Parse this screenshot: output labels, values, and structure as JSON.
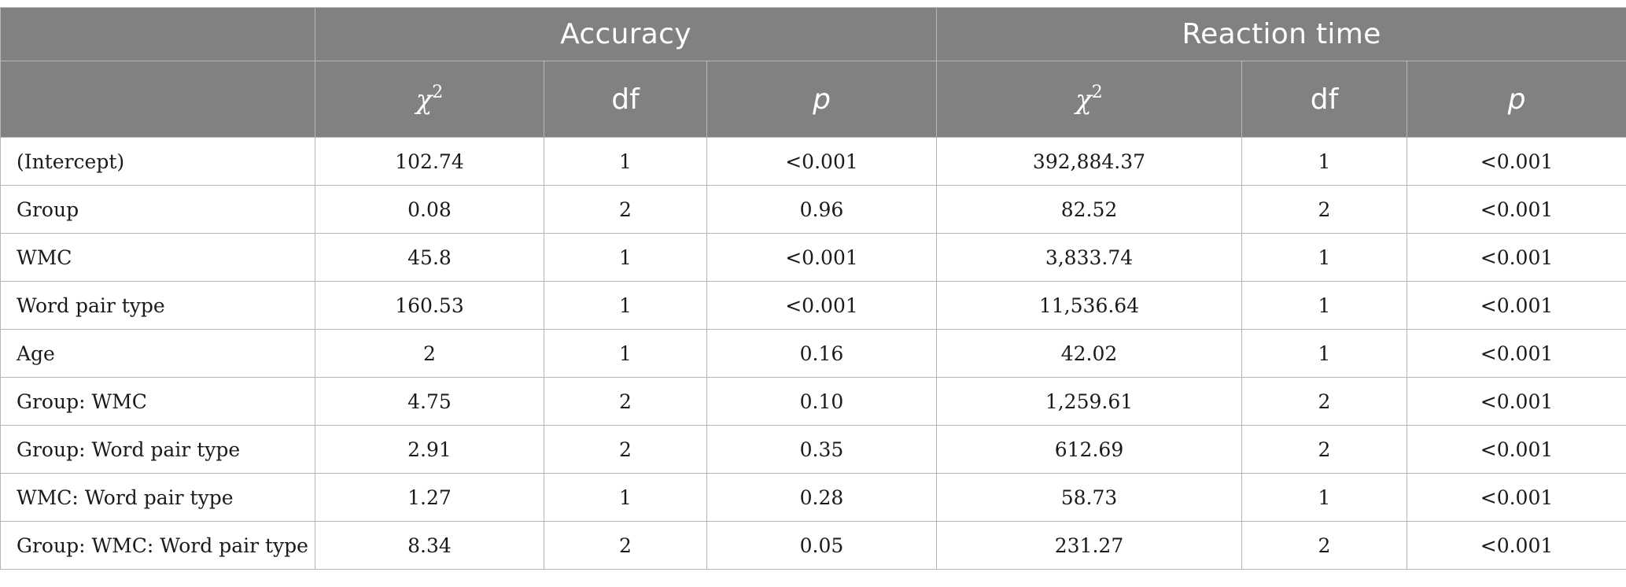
{
  "header": {
    "groups": [
      "Accuracy",
      "Reaction time"
    ],
    "stats": {
      "chi_symbol": "χ",
      "chi_exp": "2",
      "df": "df",
      "p": "p"
    }
  },
  "rows": [
    {
      "label": "(Intercept)",
      "acc_chi": "102.74",
      "acc_df": "1",
      "acc_p": "<0.001",
      "rt_chi": "392,884.37",
      "rt_df": "1",
      "rt_p": "<0.001"
    },
    {
      "label": "Group",
      "acc_chi": "0.08",
      "acc_df": "2",
      "acc_p": "0.96",
      "rt_chi": "82.52",
      "rt_df": "2",
      "rt_p": "<0.001"
    },
    {
      "label": "WMC",
      "acc_chi": "45.8",
      "acc_df": "1",
      "acc_p": "<0.001",
      "rt_chi": "3,833.74",
      "rt_df": "1",
      "rt_p": "<0.001"
    },
    {
      "label": "Word pair type",
      "acc_chi": "160.53",
      "acc_df": "1",
      "acc_p": "<0.001",
      "rt_chi": "11,536.64",
      "rt_df": "1",
      "rt_p": "<0.001"
    },
    {
      "label": "Age",
      "acc_chi": "2",
      "acc_df": "1",
      "acc_p": "0.16",
      "rt_chi": "42.02",
      "rt_df": "1",
      "rt_p": "<0.001"
    },
    {
      "label": "Group: WMC",
      "acc_chi": "4.75",
      "acc_df": "2",
      "acc_p": "0.10",
      "rt_chi": "1,259.61",
      "rt_df": "2",
      "rt_p": "<0.001"
    },
    {
      "label": "Group: Word pair type",
      "acc_chi": "2.91",
      "acc_df": "2",
      "acc_p": "0.35",
      "rt_chi": "612.69",
      "rt_df": "2",
      "rt_p": "<0.001"
    },
    {
      "label": "WMC: Word pair type",
      "acc_chi": "1.27",
      "acc_df": "1",
      "acc_p": "0.28",
      "rt_chi": "58.73",
      "rt_df": "1",
      "rt_p": "<0.001"
    },
    {
      "label": "Group: WMC: Word pair type",
      "acc_chi": "8.34",
      "acc_df": "2",
      "acc_p": "0.05",
      "rt_chi": "231.27",
      "rt_df": "2",
      "rt_p": "<0.001"
    }
  ]
}
